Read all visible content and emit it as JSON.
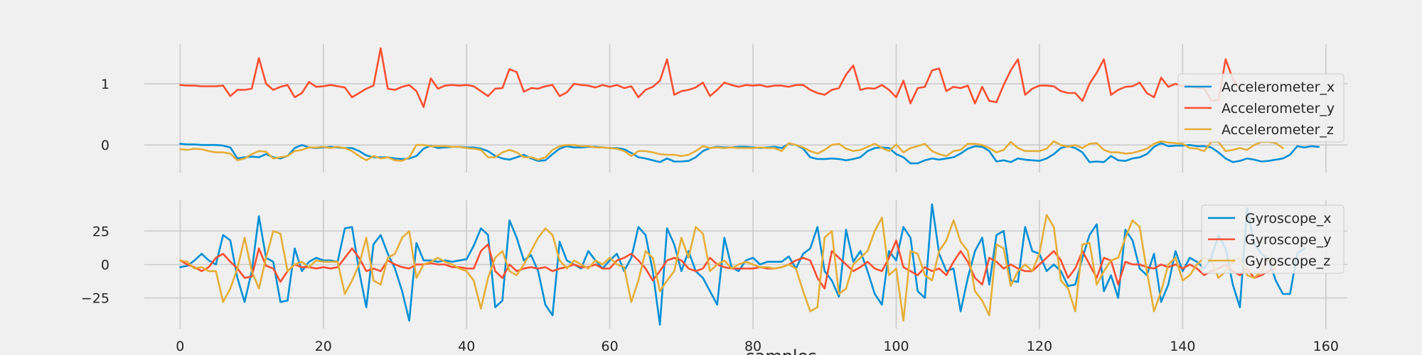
{
  "chart_data": [
    {
      "type": "line",
      "title": "",
      "xlabel": "",
      "ylabel": "",
      "xlim": [
        -5,
        163
      ],
      "ylim": [
        -0.45,
        1.65
      ],
      "xticks": [
        0,
        20,
        40,
        60,
        80,
        100,
        120,
        140,
        160
      ],
      "xtick_labels": [
        "",
        "",
        "",
        "",
        "",
        "",
        "",
        "",
        ""
      ],
      "yticks": [
        0,
        1
      ],
      "ytick_labels": [
        "0",
        "1"
      ],
      "grid": true,
      "legend_position": "right",
      "series": [
        {
          "name": "Accelerometer_x",
          "color": "#008fd5",
          "values": [
            0.02,
            0.01,
            0.01,
            0,
            0,
            0,
            -0.01,
            -0.04,
            -0.22,
            -0.2,
            -0.19,
            -0.2,
            -0.15,
            -0.2,
            -0.22,
            -0.18,
            -0.05,
            0,
            -0.04,
            -0.05,
            -0.04,
            -0.03,
            -0.04,
            -0.05,
            -0.05,
            -0.1,
            -0.17,
            -0.2,
            -0.2,
            -0.2,
            -0.22,
            -0.23,
            -0.22,
            -0.18,
            -0.06,
            -0.01,
            -0.05,
            -0.04,
            -0.03,
            -0.03,
            -0.04,
            -0.04,
            -0.06,
            -0.1,
            -0.18,
            -0.22,
            -0.24,
            -0.2,
            -0.16,
            -0.22,
            -0.26,
            -0.25,
            -0.15,
            -0.06,
            -0.02,
            -0.04,
            -0.04,
            -0.03,
            -0.03,
            -0.04,
            -0.05,
            -0.05,
            -0.07,
            -0.13,
            -0.2,
            -0.22,
            -0.25,
            -0.28,
            -0.22,
            -0.27,
            -0.27,
            -0.26,
            -0.2,
            -0.1,
            -0.05,
            -0.03,
            -0.04,
            -0.04,
            -0.03,
            -0.03,
            -0.04,
            -0.05,
            -0.04,
            -0.03,
            -0.05,
            0.02,
            0.0,
            -0.06,
            -0.2,
            -0.23,
            -0.23,
            -0.22,
            -0.23,
            -0.25,
            -0.23,
            -0.2,
            -0.1,
            -0.05,
            -0.04,
            -0.05,
            -0.15,
            -0.2,
            -0.3,
            -0.3,
            -0.25,
            -0.22,
            -0.24,
            -0.22,
            -0.2,
            -0.14,
            -0.06,
            -0.02,
            -0.03,
            -0.1,
            -0.27,
            -0.25,
            -0.28,
            -0.22,
            -0.24,
            -0.25,
            -0.26,
            -0.22,
            -0.15,
            -0.05,
            -0.02,
            -0.05,
            -0.12,
            -0.28,
            -0.27,
            -0.28,
            -0.18,
            -0.25,
            -0.26,
            -0.22,
            -0.2,
            -0.15,
            -0.03,
            0.03,
            -0.02,
            -0.01,
            -0.01,
            0,
            -0.02,
            -0.02,
            -0.04,
            -0.12,
            -0.22,
            -0.28,
            -0.26,
            -0.22,
            -0.24,
            -0.27,
            -0.26,
            -0.24,
            -0.22,
            -0.16,
            -0.02,
            -0.04,
            -0.02,
            -0.03
          ]
        },
        {
          "name": "Accelerometer_y",
          "color": "#fc4f30",
          "values": [
            0.98,
            0.97,
            0.97,
            0.96,
            0.96,
            0.96,
            0.97,
            0.8,
            0.9,
            0.9,
            0.92,
            1.42,
            1.0,
            0.9,
            0.95,
            0.98,
            0.78,
            0.85,
            1.03,
            0.95,
            0.96,
            0.98,
            0.96,
            0.94,
            0.78,
            0.85,
            0.92,
            0.97,
            1.58,
            0.92,
            0.9,
            0.95,
            0.98,
            0.88,
            0.62,
            1.09,
            0.92,
            0.97,
            0.98,
            0.97,
            0.98,
            0.96,
            0.88,
            0.8,
            0.92,
            0.93,
            1.24,
            1.19,
            0.87,
            0.93,
            0.92,
            0.96,
            0.98,
            0.8,
            0.86,
            1.0,
            0.98,
            0.97,
            0.94,
            0.98,
            0.95,
            0.98,
            0.93,
            0.96,
            0.78,
            0.9,
            0.95,
            1.05,
            1.4,
            0.82,
            0.88,
            0.9,
            0.94,
            1.02,
            0.8,
            0.9,
            1.02,
            0.98,
            0.95,
            0.98,
            0.97,
            0.98,
            0.95,
            0.97,
            0.97,
            0.95,
            0.98,
            0.98,
            0.9,
            0.85,
            0.82,
            0.9,
            0.93,
            1.15,
            1.3,
            0.9,
            0.93,
            0.92,
            0.98,
            0.9,
            0.78,
            1.05,
            0.68,
            0.93,
            0.95,
            1.22,
            1.25,
            0.88,
            0.95,
            0.93,
            0.97,
            0.68,
            0.95,
            0.72,
            0.7,
            0.98,
            1.22,
            1.4,
            0.82,
            0.92,
            0.97,
            0.97,
            0.96,
            0.88,
            0.85,
            0.85,
            0.72,
            1.0,
            1.18,
            1.4,
            0.82,
            0.9,
            0.95,
            0.96,
            1.02,
            0.85,
            0.78,
            1.1,
            0.95,
            1.0,
            0.96,
            0.97,
            0.93,
            0.93,
            0.73,
            0.73,
            1.4,
            1.08,
            0.9
          ]
        },
        {
          "name": "Accelerometer_z",
          "color": "#e5ae38",
          "values": [
            -0.07,
            -0.08,
            -0.06,
            -0.07,
            -0.1,
            -0.12,
            -0.12,
            -0.14,
            -0.25,
            -0.22,
            -0.15,
            -0.1,
            -0.11,
            -0.22,
            -0.2,
            -0.18,
            -0.1,
            -0.08,
            -0.04,
            -0.04,
            -0.03,
            -0.05,
            -0.03,
            -0.05,
            -0.1,
            -0.18,
            -0.25,
            -0.18,
            -0.22,
            -0.2,
            -0.25,
            -0.26,
            -0.2,
            0.0,
            0.0,
            -0.02,
            -0.02,
            -0.02,
            -0.03,
            -0.03,
            -0.05,
            -0.06,
            -0.08,
            -0.2,
            -0.2,
            -0.12,
            -0.08,
            -0.12,
            -0.2,
            -0.2,
            -0.24,
            -0.2,
            -0.08,
            -0.02,
            0.0,
            0.0,
            -0.02,
            -0.02,
            -0.04,
            -0.04,
            -0.05,
            -0.06,
            -0.1,
            -0.18,
            -0.1,
            -0.1,
            -0.12,
            -0.15,
            -0.16,
            -0.16,
            -0.18,
            -0.16,
            -0.1,
            -0.02,
            -0.05,
            -0.04,
            -0.05,
            -0.04,
            -0.05,
            -0.05,
            -0.05,
            -0.04,
            -0.05,
            -0.05,
            -0.1,
            0.03,
            0.0,
            -0.04,
            -0.1,
            -0.14,
            -0.08,
            0.0,
            0.02,
            -0.06,
            -0.1,
            -0.08,
            -0.03,
            0.02,
            -0.05,
            -0.1,
            0.01,
            -0.12,
            -0.05,
            -0.02,
            0.02,
            -0.1,
            -0.15,
            -0.18,
            -0.1,
            -0.08,
            0.02,
            0.02,
            0.0,
            -0.05,
            -0.12,
            -0.08,
            0.05,
            -0.05,
            -0.1,
            -0.1,
            -0.1,
            -0.06,
            0.06,
            0.0,
            -0.03,
            0.0,
            -0.05,
            0.02,
            0.03,
            -0.08,
            -0.12,
            -0.12,
            -0.14,
            -0.13,
            -0.1,
            -0.06,
            0.02,
            0.06,
            0.04,
            0.03,
            0.02,
            -0.05,
            -0.06,
            -0.1,
            0.05,
            0.05,
            -0.1,
            -0.08,
            -0.05,
            -0.08,
            0.0,
            0.05,
            0.05,
            0.03,
            -0.05
          ]
        }
      ]
    },
    {
      "type": "line",
      "title": "",
      "xlabel": "samples",
      "ylabel": "",
      "xlim": [
        -5,
        163
      ],
      "ylim": [
        -48,
        48
      ],
      "xticks": [
        0,
        20,
        40,
        60,
        80,
        100,
        120,
        140,
        160
      ],
      "xtick_labels": [
        "0",
        "20",
        "40",
        "60",
        "80",
        "100",
        "120",
        "140",
        "160"
      ],
      "yticks": [
        -25,
        0,
        25
      ],
      "ytick_labels": [
        "−25",
        "0",
        "25"
      ],
      "grid": true,
      "legend_position": "right",
      "series": [
        {
          "name": "Gyroscope_x",
          "color": "#008fd5",
          "values": [
            -2,
            -1,
            3,
            8,
            3,
            0,
            22,
            18,
            -10,
            -28,
            -5,
            36,
            5,
            2,
            -28,
            -27,
            12,
            -5,
            2,
            5,
            3,
            3,
            2,
            27,
            28,
            -5,
            -32,
            15,
            22,
            8,
            -3,
            -20,
            -42,
            16,
            3,
            3,
            2,
            3,
            2,
            3,
            4,
            14,
            27,
            22,
            -32,
            -27,
            33,
            20,
            3,
            7,
            -5,
            -30,
            -38,
            17,
            3,
            0,
            -3,
            10,
            3,
            -3,
            3,
            8,
            -5,
            5,
            28,
            22,
            -5,
            -45,
            27,
            15,
            -5,
            10,
            -5,
            -10,
            -20,
            -30,
            20,
            -2,
            -5,
            3,
            5,
            0,
            2,
            2,
            2,
            6,
            -3,
            8,
            12,
            28,
            -5,
            -12,
            -24,
            26,
            2,
            10,
            -5,
            -22,
            -30,
            10,
            3,
            28,
            20,
            -20,
            -25,
            45,
            8,
            -5,
            -3,
            -35,
            -10,
            10,
            20,
            -15,
            22,
            25,
            -12,
            -13,
            28,
            10,
            8,
            -5,
            0,
            -5,
            -16,
            -15,
            5,
            22,
            30,
            -20,
            -8,
            -25,
            26,
            18,
            -3,
            -8,
            8,
            -28,
            -15,
            10,
            -5,
            5,
            2,
            -3,
            5,
            22,
            12,
            -15,
            -32,
            42,
            15,
            8,
            4,
            -12,
            -22,
            -22,
            8,
            12
          ]
        },
        {
          "name": "Gyroscope_y",
          "color": "#fc4f30",
          "values": [
            3,
            0,
            -2,
            -5,
            -2,
            5,
            8,
            2,
            -3,
            -10,
            -9,
            12,
            -1,
            -3,
            -13,
            -5,
            0,
            -2,
            -2,
            -3,
            -2,
            -3,
            -2,
            5,
            12,
            5,
            -5,
            -3,
            -5,
            3,
            0,
            -2,
            -3,
            0,
            0,
            1,
            0,
            0,
            -2,
            -2,
            -3,
            -3,
            10,
            15,
            -5,
            -10,
            0,
            -5,
            -3,
            -2,
            -3,
            -2,
            -5,
            -3,
            -2,
            0,
            -2,
            -2,
            0,
            -3,
            -3,
            3,
            5,
            8,
            3,
            -3,
            -12,
            -5,
            3,
            5,
            3,
            -3,
            -5,
            -3,
            5,
            0,
            -2,
            -3,
            -3,
            -3,
            -3,
            -2,
            -3,
            -3,
            -2,
            0,
            3,
            5,
            3,
            -10,
            -18,
            10,
            5,
            0,
            -5,
            -2,
            2,
            -3,
            -5,
            5,
            18,
            -2,
            -5,
            -8,
            -2,
            -5,
            -3,
            -8,
            2,
            10,
            2,
            -10,
            -15,
            5,
            2,
            -3,
            0,
            -3,
            -5,
            -5,
            0,
            5,
            10,
            3,
            -10,
            -3,
            10,
            0,
            -10,
            5,
            3,
            -15,
            2,
            0,
            0,
            -2,
            -3,
            0,
            -2,
            0,
            -3,
            0,
            -3,
            -8,
            -5,
            -3,
            0,
            -5,
            -8,
            -3,
            -10,
            -8,
            -5,
            -3
          ]
        },
        {
          "name": "Gyroscope_z",
          "color": "#e5ae38",
          "values": [
            3,
            2,
            -3,
            -2,
            -5,
            -5,
            -28,
            -18,
            -3,
            20,
            -5,
            -18,
            5,
            25,
            23,
            -5,
            0,
            2,
            -2,
            3,
            2,
            2,
            2,
            -22,
            -12,
            0,
            20,
            -12,
            -15,
            5,
            8,
            20,
            25,
            -10,
            0,
            2,
            5,
            2,
            0,
            -3,
            -5,
            -12,
            -33,
            -10,
            5,
            10,
            -5,
            -8,
            0,
            10,
            20,
            27,
            22,
            3,
            -3,
            3,
            0,
            -3,
            3,
            0,
            5,
            0,
            -2,
            -28,
            -12,
            10,
            5,
            -20,
            -12,
            -5,
            20,
            5,
            28,
            23,
            -5,
            0,
            3,
            -3,
            0,
            2,
            0,
            -2,
            -2,
            -3,
            -2,
            0,
            -3,
            -20,
            -35,
            -32,
            20,
            25,
            -22,
            -18,
            0,
            5,
            10,
            25,
            35,
            -8,
            -3,
            -42,
            10,
            8,
            -8,
            -12,
            10,
            18,
            33,
            17,
            10,
            -20,
            -27,
            -38,
            15,
            12,
            -16,
            -5,
            0,
            -5,
            8,
            37,
            28,
            -12,
            -18,
            -35,
            15,
            16,
            -15,
            -5,
            3,
            5,
            20,
            33,
            28,
            -5,
            -35,
            -20,
            0,
            5,
            -12,
            -8,
            0,
            5,
            3,
            -10,
            -5,
            2,
            5,
            -8,
            -10,
            -5,
            5,
            -3
          ]
        }
      ]
    }
  ]
}
